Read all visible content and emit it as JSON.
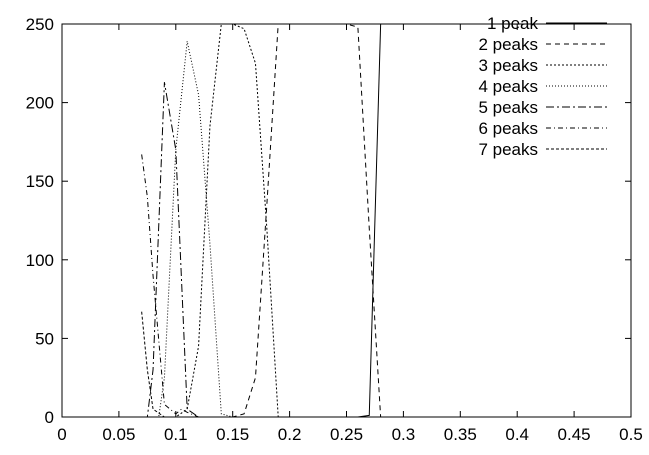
{
  "chart_data": {
    "type": "line",
    "title": "",
    "xlabel": "",
    "ylabel": "",
    "xlim": [
      0,
      0.5
    ],
    "ylim": [
      0,
      250
    ],
    "grid": false,
    "legend_position": "top-right",
    "x_ticks": [
      "0",
      "0.05",
      "0.1",
      "0.15",
      "0.2",
      "0.25",
      "0.3",
      "0.35",
      "0.4",
      "0.45",
      "0.5"
    ],
    "y_ticks": [
      "0",
      "50",
      "100",
      "150",
      "200",
      "250"
    ],
    "series": [
      {
        "name": "1 peak",
        "dash": "none",
        "x": [
          0.07,
          0.1,
          0.2,
          0.26,
          0.27,
          0.28,
          0.3,
          0.4,
          0.5
        ],
        "y": [
          0,
          0,
          0,
          0,
          1,
          250,
          250,
          250,
          250
        ]
      },
      {
        "name": "2 peaks",
        "dash": "5,4",
        "x": [
          0.07,
          0.15,
          0.16,
          0.17,
          0.18,
          0.19,
          0.2,
          0.22,
          0.24,
          0.25,
          0.26,
          0.27,
          0.28
        ],
        "y": [
          0,
          0,
          2,
          25,
          135,
          250,
          250,
          250,
          250,
          250,
          248,
          120,
          0
        ]
      },
      {
        "name": "3 peaks",
        "dash": "2,2",
        "x": [
          0.07,
          0.1,
          0.11,
          0.12,
          0.13,
          0.14,
          0.15,
          0.16,
          0.17,
          0.18,
          0.19
        ],
        "y": [
          0,
          0,
          5,
          45,
          185,
          250,
          250,
          247,
          225,
          120,
          0
        ]
      },
      {
        "name": "4 peaks",
        "dash": "1,2",
        "x": [
          0.07,
          0.085,
          0.09,
          0.1,
          0.11,
          0.12,
          0.13,
          0.14,
          0.15
        ],
        "y": [
          0,
          0,
          25,
          170,
          239,
          205,
          110,
          2,
          0
        ]
      },
      {
        "name": "5 peaks",
        "dash": "8,3,2,3",
        "x": [
          0.07,
          0.075,
          0.08,
          0.09,
          0.1,
          0.11,
          0.12,
          0.15
        ],
        "y": [
          0,
          0,
          30,
          213,
          170,
          5,
          0,
          0
        ]
      },
      {
        "name": "6 peaks",
        "dash": "5,3,1,3",
        "x": [
          0.07,
          0.075,
          0.08,
          0.09,
          0.1,
          0.105,
          0.11,
          0.12
        ],
        "y": [
          167,
          140,
          90,
          8,
          2,
          5,
          3,
          0
        ]
      },
      {
        "name": "7 peaks",
        "dash": "3,2",
        "x": [
          0.07,
          0.075,
          0.08,
          0.09,
          0.1
        ],
        "y": [
          67,
          30,
          5,
          0,
          0
        ]
      }
    ]
  }
}
